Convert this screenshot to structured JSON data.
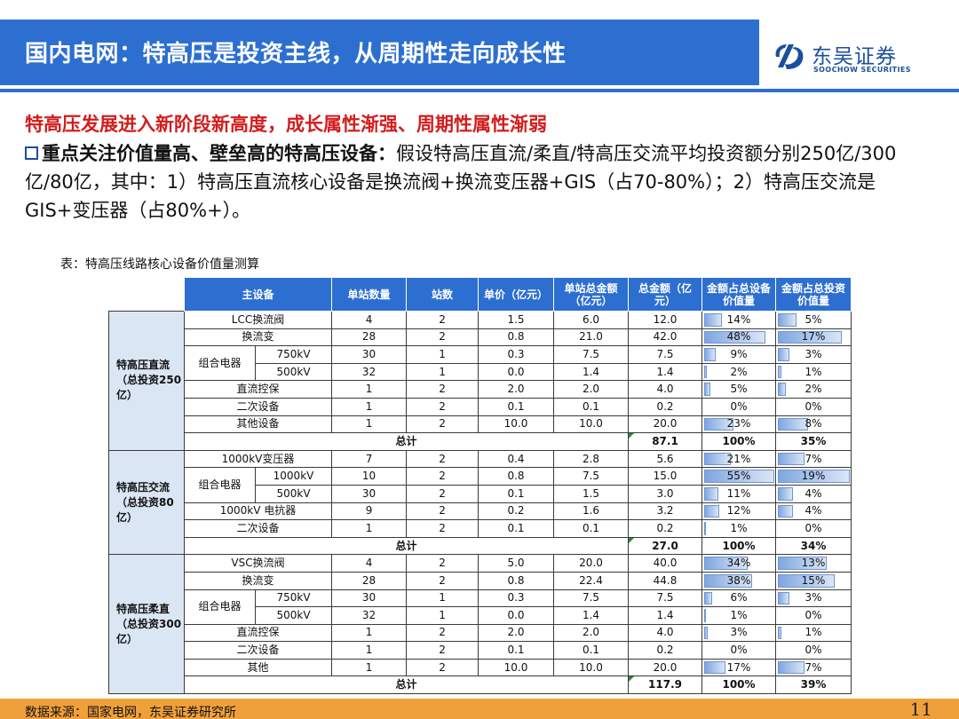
{
  "header": {
    "title": "国内电网：特高压是投资主线，从周期性走向成长性",
    "logo_cn": "东吴证券",
    "logo_en": "SOOCHOW SECURITIES",
    "bar_color": "#2d6fd0"
  },
  "subtitle": "特高压发展进入新阶段新高度，成长属性渐强、周期性属性渐弱",
  "paragraph": {
    "bold": "重点关注价值量高、壁垒高的特高压设备：",
    "text": "假设特高压直流/柔直/特高压交流平均投资额分别250亿/300亿/80亿，其中：1）特高压直流核心设备是换流阀+换流变压器+GIS（占70-80%）；2）特高压交流是GIS+变压器（占80%+）。"
  },
  "table": {
    "caption": "表：特高压线路核心设备价值量测算",
    "headers": [
      "主设备",
      "单站数量",
      "站数",
      "单价（亿元）",
      "单站总金额（亿元）",
      "总金额（亿元）",
      "金额占总设备价值量",
      "金额占总投资价值量"
    ],
    "groups": [
      {
        "label": "特高压直流（总投资250亿）",
        "rows": [
          {
            "name": "LCC换流阀",
            "sub": "",
            "qty": "4",
            "stations": "2",
            "price": "1.5",
            "station_total": "6.0",
            "total": "12.0",
            "equip_pct": "14%",
            "equip_frac": 0.14,
            "invest_pct": "5%",
            "invest_frac": 0.05
          },
          {
            "name": "换流变",
            "sub": "",
            "qty": "28",
            "stations": "2",
            "price": "0.8",
            "station_total": "21.0",
            "total": "42.0",
            "equip_pct": "48%",
            "equip_frac": 0.48,
            "invest_pct": "17%",
            "invest_frac": 0.17
          },
          {
            "name": "组合电器",
            "sub": "750kV",
            "qty": "30",
            "stations": "1",
            "price": "0.3",
            "station_total": "7.5",
            "total": "7.5",
            "equip_pct": "9%",
            "equip_frac": 0.09,
            "invest_pct": "3%",
            "invest_frac": 0.03
          },
          {
            "name": "组合电器",
            "sub": "500kV",
            "qty": "32",
            "stations": "1",
            "price": "0.0",
            "station_total": "1.4",
            "total": "1.4",
            "equip_pct": "2%",
            "equip_frac": 0.02,
            "invest_pct": "1%",
            "invest_frac": 0.01
          },
          {
            "name": "直流控保",
            "sub": "",
            "qty": "1",
            "stations": "2",
            "price": "2.0",
            "station_total": "2.0",
            "total": "4.0",
            "equip_pct": "5%",
            "equip_frac": 0.05,
            "invest_pct": "2%",
            "invest_frac": 0.02
          },
          {
            "name": "二次设备",
            "sub": "",
            "qty": "1",
            "stations": "2",
            "price": "0.1",
            "station_total": "0.1",
            "total": "0.2",
            "equip_pct": "0%",
            "equip_frac": 0.0,
            "invest_pct": "0%",
            "invest_frac": 0.0
          },
          {
            "name": "其他设备",
            "sub": "",
            "qty": "1",
            "stations": "2",
            "price": "10.0",
            "station_total": "10.0",
            "total": "20.0",
            "equip_pct": "23%",
            "equip_frac": 0.23,
            "invest_pct": "8%",
            "invest_frac": 0.08
          }
        ],
        "total_label": "总计",
        "total": {
          "total": "87.1",
          "equip_pct": "100%",
          "invest_pct": "35%"
        }
      },
      {
        "label": "特高压交流（总投资80亿）",
        "rows": [
          {
            "name": "1000kV变压器",
            "sub": "",
            "qty": "7",
            "stations": "2",
            "price": "0.4",
            "station_total": "2.8",
            "total": "5.6",
            "equip_pct": "21%",
            "equip_frac": 0.21,
            "invest_pct": "7%",
            "invest_frac": 0.07
          },
          {
            "name": "组合电器",
            "sub": "1000kV",
            "qty": "10",
            "stations": "2",
            "price": "0.8",
            "station_total": "7.5",
            "total": "15.0",
            "equip_pct": "55%",
            "equip_frac": 0.55,
            "invest_pct": "19%",
            "invest_frac": 0.19
          },
          {
            "name": "组合电器",
            "sub": "500kV",
            "qty": "30",
            "stations": "2",
            "price": "0.1",
            "station_total": "1.5",
            "total": "3.0",
            "equip_pct": "11%",
            "equip_frac": 0.11,
            "invest_pct": "4%",
            "invest_frac": 0.04
          },
          {
            "name": "1000kV 电抗器",
            "sub": "",
            "qty": "9",
            "stations": "2",
            "price": "0.2",
            "station_total": "1.6",
            "total": "3.2",
            "equip_pct": "12%",
            "equip_frac": 0.12,
            "invest_pct": "4%",
            "invest_frac": 0.04
          },
          {
            "name": "二次设备",
            "sub": "",
            "qty": "1",
            "stations": "2",
            "price": "0.1",
            "station_total": "0.1",
            "total": "0.2",
            "equip_pct": "1%",
            "equip_frac": 0.01,
            "invest_pct": "0%",
            "invest_frac": 0.0
          }
        ],
        "total_label": "总计",
        "total": {
          "total": "27.0",
          "equip_pct": "100%",
          "invest_pct": "34%"
        }
      },
      {
        "label": "特高压柔直（总投资300亿）",
        "rows": [
          {
            "name": "VSC换流阀",
            "sub": "",
            "qty": "4",
            "stations": "2",
            "price": "5.0",
            "station_total": "20.0",
            "total": "40.0",
            "equip_pct": "34%",
            "equip_frac": 0.34,
            "invest_pct": "13%",
            "invest_frac": 0.13
          },
          {
            "name": "换流变",
            "sub": "",
            "qty": "28",
            "stations": "2",
            "price": "0.8",
            "station_total": "22.4",
            "total": "44.8",
            "equip_pct": "38%",
            "equip_frac": 0.38,
            "invest_pct": "15%",
            "invest_frac": 0.15
          },
          {
            "name": "组合电器",
            "sub": "750kV",
            "qty": "30",
            "stations": "1",
            "price": "0.3",
            "station_total": "7.5",
            "total": "7.5",
            "equip_pct": "6%",
            "equip_frac": 0.06,
            "invest_pct": "3%",
            "invest_frac": 0.03
          },
          {
            "name": "组合电器",
            "sub": "500kV",
            "qty": "32",
            "stations": "1",
            "price": "0.0",
            "station_total": "1.4",
            "total": "1.4",
            "equip_pct": "1%",
            "equip_frac": 0.01,
            "invest_pct": "0%",
            "invest_frac": 0.0
          },
          {
            "name": "直流控保",
            "sub": "",
            "qty": "1",
            "stations": "2",
            "price": "2.0",
            "station_total": "2.0",
            "total": "4.0",
            "equip_pct": "3%",
            "equip_frac": 0.03,
            "invest_pct": "1%",
            "invest_frac": 0.01
          },
          {
            "name": "二次设备",
            "sub": "",
            "qty": "1",
            "stations": "2",
            "price": "0.1",
            "station_total": "0.1",
            "total": "0.2",
            "equip_pct": "0%",
            "equip_frac": 0.0,
            "invest_pct": "0%",
            "invest_frac": 0.0
          },
          {
            "name": "其他",
            "sub": "",
            "qty": "1",
            "stations": "2",
            "price": "10.0",
            "station_total": "10.0",
            "total": "20.0",
            "equip_pct": "17%",
            "equip_frac": 0.17,
            "invest_pct": "7%",
            "invest_frac": 0.07
          }
        ],
        "total_label": "总计",
        "total": {
          "total": "117.9",
          "equip_pct": "100%",
          "invest_pct": "39%"
        }
      }
    ]
  },
  "footer": {
    "source": "数据来源：国家电网，东吴证券研究所",
    "page": "11"
  }
}
